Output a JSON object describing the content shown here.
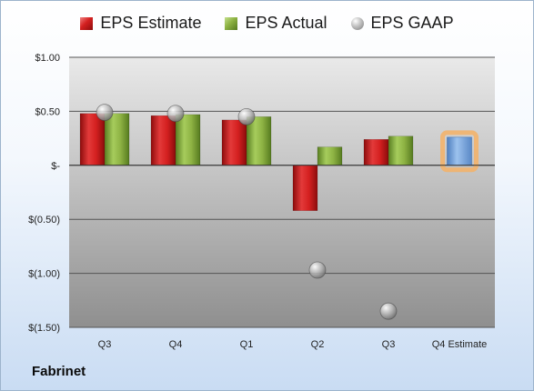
{
  "company": "Fabrinet",
  "legend": [
    {
      "label": "EPS Estimate",
      "color": "#c81e1e"
    },
    {
      "label": "EPS Actual",
      "color": "#8db243"
    },
    {
      "label": "EPS GAAP",
      "color": "#a9a9a9"
    }
  ],
  "chart_data": {
    "type": "bar",
    "categories": [
      "Q3",
      "Q4",
      "Q1",
      "Q2",
      "Q3",
      "Q4 Estimate"
    ],
    "series": [
      {
        "name": "EPS Estimate",
        "values": [
          0.48,
          0.46,
          0.42,
          -0.42,
          0.24,
          null
        ]
      },
      {
        "name": "EPS Actual",
        "values": [
          0.48,
          0.47,
          0.45,
          0.17,
          0.27,
          null
        ]
      },
      {
        "name": "EPS GAAP",
        "values": [
          0.49,
          0.48,
          0.45,
          -0.97,
          -1.35,
          null
        ]
      }
    ],
    "forecast": {
      "category": "Q4 Estimate",
      "value": 0.26,
      "color": "#6f9fd8",
      "highlight": "#f5b266"
    },
    "ylim": [
      -1.5,
      1.0
    ],
    "yticks": [
      {
        "value": 1.0,
        "label": "$1.00"
      },
      {
        "value": 0.5,
        "label": "$0.50"
      },
      {
        "value": 0.0,
        "label": "$-"
      },
      {
        "value": -0.5,
        "label": "$(0.50)"
      },
      {
        "value": -1.0,
        "label": "$(1.00)"
      },
      {
        "value": -1.5,
        "label": "$(1.50)"
      }
    ],
    "grid": true,
    "legend_position": "top",
    "title": "",
    "xlabel": "",
    "ylabel": ""
  }
}
